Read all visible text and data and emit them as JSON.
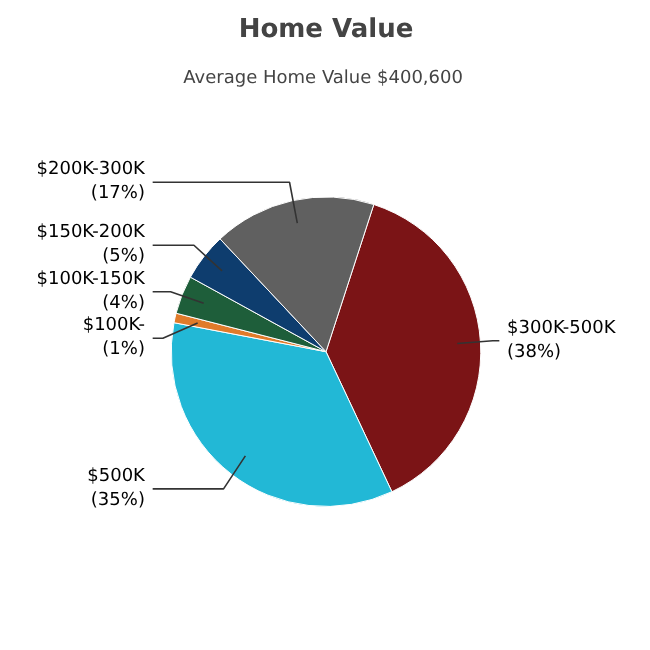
{
  "chart_data": {
    "type": "pie",
    "title": "Home Value",
    "subtitle": "Average Home Value  $400,600",
    "categories": [
      "$300K-500K",
      "$500K",
      "$100K-",
      "$100K-150K",
      "$150K-200K",
      "$200K-300K"
    ],
    "values": [
      38,
      35,
      1,
      4,
      5,
      17
    ],
    "value_labels": [
      "(38%)",
      "(35%)",
      "(1%)",
      "(4%)",
      "(5%)",
      "(17%)"
    ],
    "colors": [
      "#7b1416",
      "#22b8d6",
      "#e07b2a",
      "#1e5e3a",
      "#0e3d6e",
      "#606060"
    ]
  }
}
